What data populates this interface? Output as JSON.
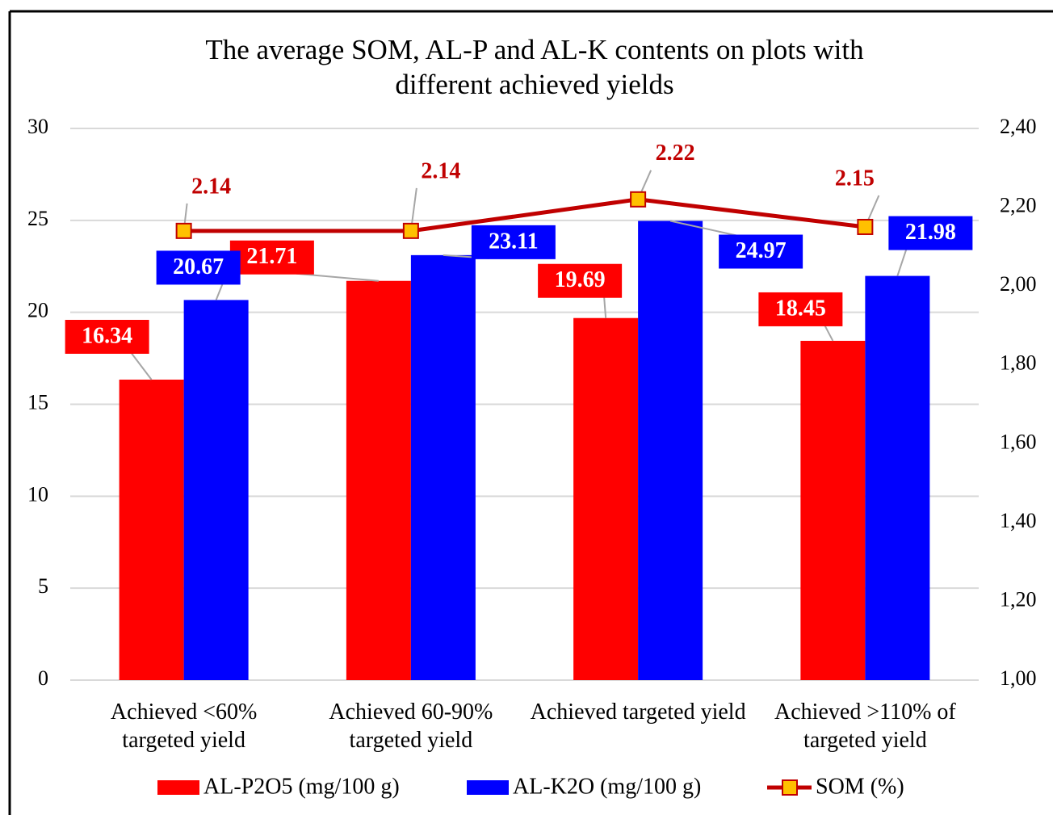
{
  "chart_data": {
    "type": "bar",
    "title": "The average SOM, AL-P and AL-K contents on plots with different achieved yields",
    "categories": [
      "Achieved <60% targeted yield",
      "Achieved 60-90% targeted yield",
      "Achieved targeted yield",
      "Achieved >110% of targeted yield"
    ],
    "series": [
      {
        "name": "AL-P2O5 (mg/100 g)",
        "color": "#ff0000",
        "values": [
          16.34,
          21.71,
          19.69,
          18.45
        ]
      },
      {
        "name": "AL-K2O (mg/100 g)",
        "color": "#0000ff",
        "values": [
          20.67,
          23.11,
          24.97,
          21.98
        ]
      },
      {
        "name": "SOM (%)",
        "type": "line",
        "axis": "y2",
        "color": "#c00000",
        "marker_color": "#ffc000",
        "values": [
          2.14,
          2.14,
          2.22,
          2.15
        ]
      }
    ],
    "ylim": [
      0,
      30
    ],
    "yticks": [
      0,
      5,
      10,
      15,
      20,
      25,
      30
    ],
    "y2lim": [
      1.0,
      2.4
    ],
    "y2ticks": [
      {
        "value": 1.0,
        "label": "1,00"
      },
      {
        "value": 1.2,
        "label": "1,20"
      },
      {
        "value": 1.4,
        "label": "1,40"
      },
      {
        "value": 1.6,
        "label": "1,60"
      },
      {
        "value": 1.8,
        "label": "1,80"
      },
      {
        "value": 2.0,
        "label": "2,00"
      },
      {
        "value": 2.2,
        "label": "2,20"
      },
      {
        "value": 2.4,
        "label": "2,40"
      }
    ],
    "grid": true,
    "legend": "bottom"
  }
}
